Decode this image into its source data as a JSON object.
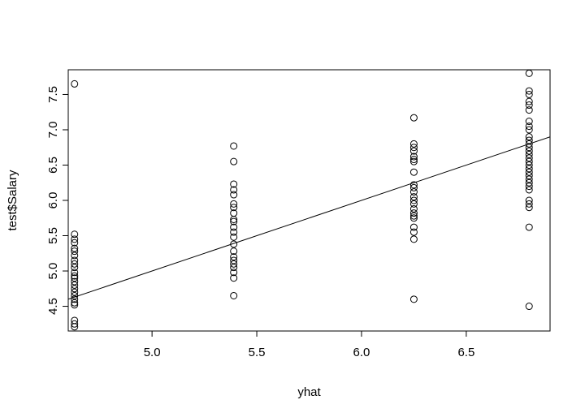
{
  "chart_data": {
    "type": "scatter",
    "title": "",
    "xlabel": "yhat",
    "ylabel": "test$Salary",
    "xlim": [
      4.6,
      6.9
    ],
    "ylim": [
      4.15,
      7.85
    ],
    "xticks": [
      "5.0",
      "5.5",
      "6.0",
      "6.5"
    ],
    "yticks": [
      "4.5",
      "5.0",
      "5.5",
      "6.0",
      "6.5",
      "7.0",
      "7.5"
    ],
    "grid": false,
    "legend": "none",
    "point_style": "open-circle",
    "colors": {
      "points": "#000000",
      "line": "#000000",
      "frame": "#000000"
    },
    "reference_line": {
      "type": "identity",
      "from": [
        4.6,
        4.6
      ],
      "to": [
        6.9,
        6.9
      ]
    },
    "points": [
      [
        4.63,
        7.65
      ],
      [
        4.63,
        5.52
      ],
      [
        4.63,
        5.45
      ],
      [
        4.63,
        5.4
      ],
      [
        4.63,
        5.32
      ],
      [
        4.63,
        5.28
      ],
      [
        4.63,
        5.22
      ],
      [
        4.63,
        5.15
      ],
      [
        4.63,
        5.1
      ],
      [
        4.63,
        5.05
      ],
      [
        4.63,
        4.98
      ],
      [
        4.63,
        4.93
      ],
      [
        4.63,
        4.9
      ],
      [
        4.63,
        4.85
      ],
      [
        4.63,
        4.8
      ],
      [
        4.63,
        4.75
      ],
      [
        4.63,
        4.7
      ],
      [
        4.63,
        4.65
      ],
      [
        4.63,
        4.6
      ],
      [
        4.63,
        4.55
      ],
      [
        4.63,
        4.52
      ],
      [
        4.63,
        4.3
      ],
      [
        4.63,
        4.25
      ],
      [
        4.63,
        4.21
      ],
      [
        5.39,
        6.77
      ],
      [
        5.39,
        6.55
      ],
      [
        5.39,
        6.23
      ],
      [
        5.39,
        6.15
      ],
      [
        5.39,
        6.08
      ],
      [
        5.39,
        5.95
      ],
      [
        5.39,
        5.9
      ],
      [
        5.39,
        5.82
      ],
      [
        5.39,
        5.73
      ],
      [
        5.39,
        5.7
      ],
      [
        5.39,
        5.62
      ],
      [
        5.39,
        5.55
      ],
      [
        5.39,
        5.48
      ],
      [
        5.39,
        5.38
      ],
      [
        5.39,
        5.28
      ],
      [
        5.39,
        5.2
      ],
      [
        5.39,
        5.15
      ],
      [
        5.39,
        5.1
      ],
      [
        5.39,
        5.05
      ],
      [
        5.39,
        4.98
      ],
      [
        5.39,
        4.9
      ],
      [
        5.39,
        4.65
      ],
      [
        6.25,
        7.17
      ],
      [
        6.25,
        6.8
      ],
      [
        6.25,
        6.75
      ],
      [
        6.25,
        6.7
      ],
      [
        6.25,
        6.62
      ],
      [
        6.25,
        6.58
      ],
      [
        6.25,
        6.55
      ],
      [
        6.25,
        6.4
      ],
      [
        6.25,
        6.22
      ],
      [
        6.25,
        6.18
      ],
      [
        6.25,
        6.12
      ],
      [
        6.25,
        6.05
      ],
      [
        6.25,
        6.0
      ],
      [
        6.25,
        5.95
      ],
      [
        6.25,
        5.88
      ],
      [
        6.25,
        5.82
      ],
      [
        6.25,
        5.78
      ],
      [
        6.25,
        5.75
      ],
      [
        6.25,
        5.62
      ],
      [
        6.25,
        5.55
      ],
      [
        6.25,
        5.45
      ],
      [
        6.25,
        4.6
      ],
      [
        6.8,
        7.8
      ],
      [
        6.8,
        7.55
      ],
      [
        6.8,
        7.5
      ],
      [
        6.8,
        7.4
      ],
      [
        6.8,
        7.35
      ],
      [
        6.8,
        7.28
      ],
      [
        6.8,
        7.12
      ],
      [
        6.8,
        7.05
      ],
      [
        6.8,
        7.0
      ],
      [
        6.8,
        6.9
      ],
      [
        6.8,
        6.85
      ],
      [
        6.8,
        6.8
      ],
      [
        6.8,
        6.75
      ],
      [
        6.8,
        6.7
      ],
      [
        6.8,
        6.65
      ],
      [
        6.8,
        6.6
      ],
      [
        6.8,
        6.55
      ],
      [
        6.8,
        6.5
      ],
      [
        6.8,
        6.45
      ],
      [
        6.8,
        6.4
      ],
      [
        6.8,
        6.35
      ],
      [
        6.8,
        6.3
      ],
      [
        6.8,
        6.25
      ],
      [
        6.8,
        6.2
      ],
      [
        6.8,
        6.15
      ],
      [
        6.8,
        6.0
      ],
      [
        6.8,
        5.95
      ],
      [
        6.8,
        5.9
      ],
      [
        6.8,
        5.62
      ],
      [
        6.8,
        4.5
      ]
    ]
  }
}
